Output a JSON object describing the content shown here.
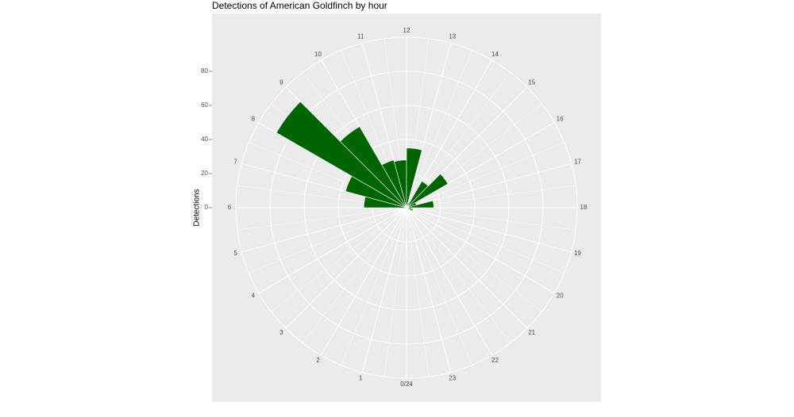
{
  "chart_data": {
    "type": "polar-bar",
    "title": "Detections of American Goldfinch by hour",
    "y_label": "Detections",
    "categories": [
      "0/24",
      "1",
      "2",
      "3",
      "4",
      "5",
      "6",
      "7",
      "8",
      "9",
      "10",
      "11",
      "12",
      "13",
      "14",
      "15",
      "16",
      "17",
      "18",
      "19",
      "20",
      "21",
      "22",
      "23"
    ],
    "values": [
      0,
      0,
      0,
      0,
      0,
      1,
      25,
      37,
      88,
      55,
      29,
      28,
      35,
      3,
      18,
      28,
      6,
      16,
      3,
      4,
      2,
      0,
      0,
      0
    ],
    "color": "#006400",
    "ylim": [
      0,
      100
    ],
    "yticks": [
      0,
      20,
      40,
      60,
      80
    ],
    "grid": true
  }
}
